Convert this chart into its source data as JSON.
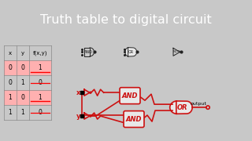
{
  "title": "Truth table to digital circuit",
  "title_bg": "#606060",
  "title_color": "#ffffff",
  "table_headers": [
    "x",
    "y",
    "f(x,y)"
  ],
  "table_rows": [
    [
      "0",
      "0",
      "1"
    ],
    [
      "0",
      "1",
      "0"
    ],
    [
      "1",
      "0",
      "1"
    ],
    [
      "1",
      "1",
      "0"
    ]
  ],
  "highlight_rows": [
    0,
    2
  ],
  "highlight_color": "#ffb0b0",
  "strike_rows": [
    1,
    3
  ],
  "bg_color": "#c8c8c8",
  "panel_bg": "#e8e8e8",
  "gate_color": "#cc1111",
  "ref_gate_color": "#222222",
  "output_text": "output",
  "x_label": "x",
  "y_label": "y",
  "figsize": [
    3.2,
    1.8
  ],
  "dpi": 100
}
